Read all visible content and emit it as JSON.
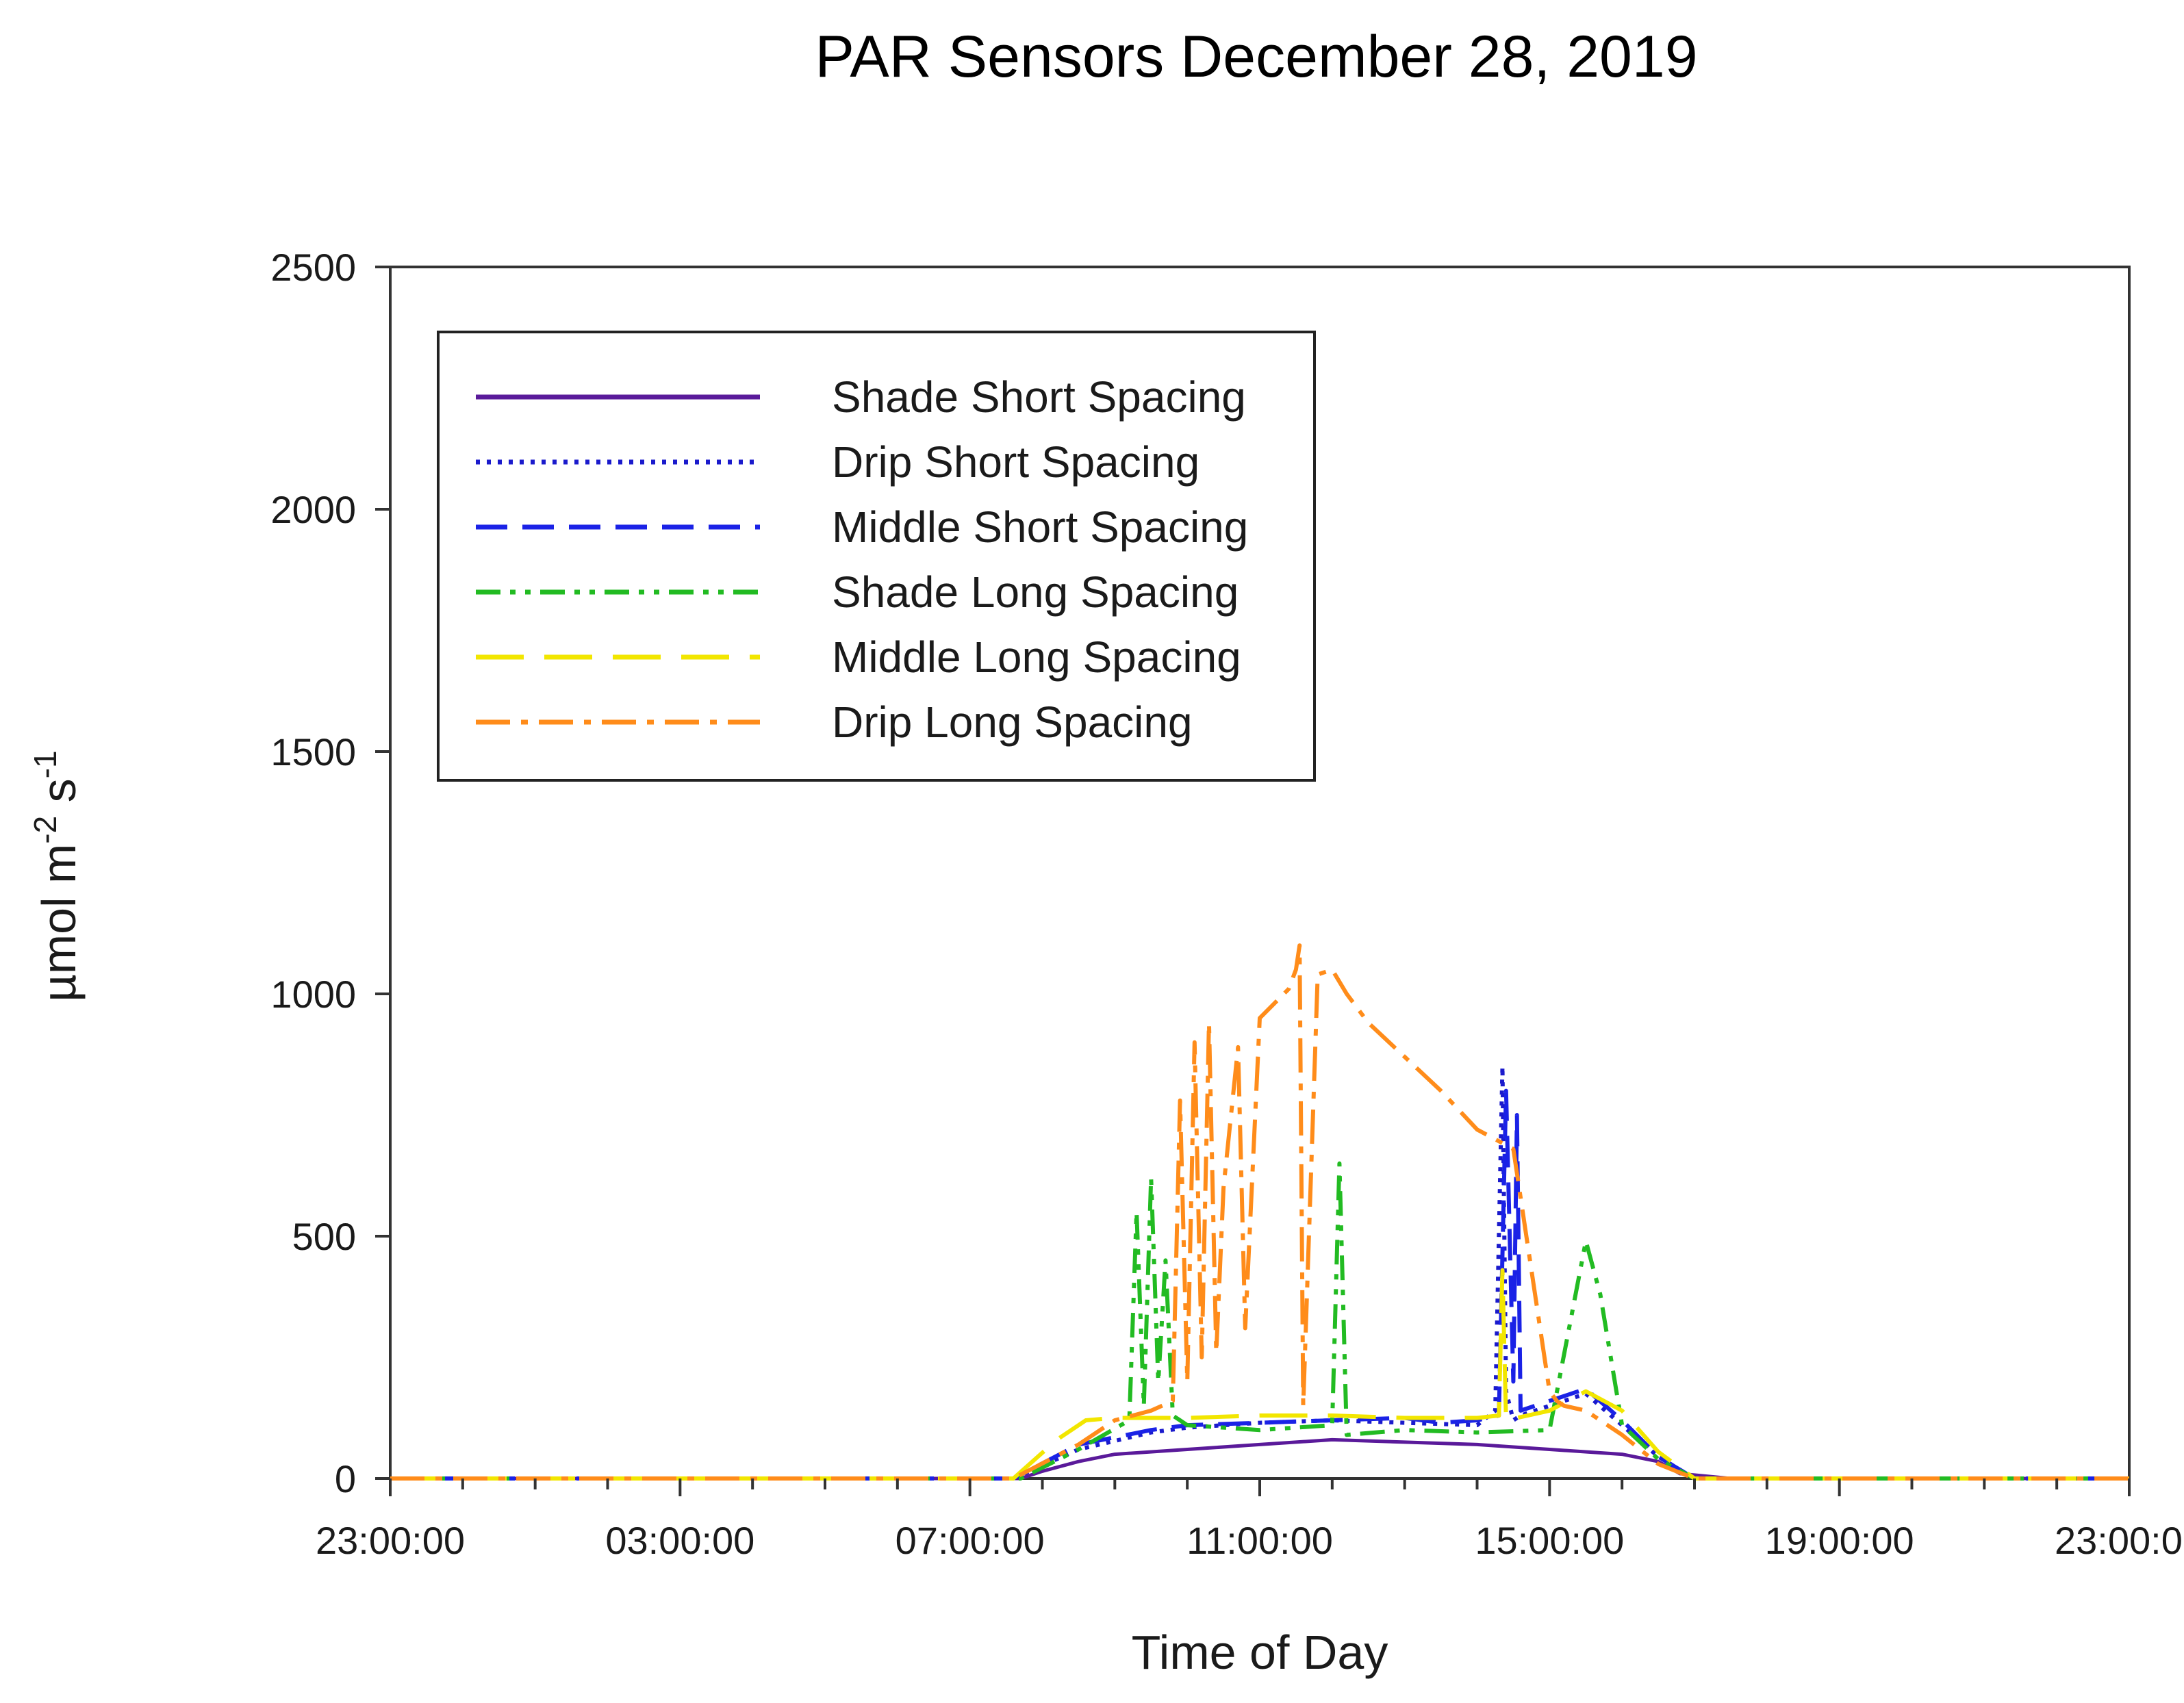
{
  "chart_data": {
    "type": "line",
    "title": "PAR Sensors December 28, 2019",
    "xlabel": "Time of Day",
    "ylabel": "µmol m-2 s-1",
    "ylabel_parts": {
      "base": "µmol m",
      "exp1": "-2",
      "mid": " s",
      "exp2": "-1"
    },
    "ylim": [
      0,
      2500
    ],
    "xlim": [
      0,
      24
    ],
    "yticks": [
      0,
      500,
      1000,
      1500,
      2000,
      2500
    ],
    "xticks": [
      0,
      4,
      8,
      12,
      16,
      20,
      24
    ],
    "xtick_labels": [
      "23:00:00",
      "03:00:00",
      "07:00:00",
      "11:00:00",
      "15:00:00",
      "19:00:00",
      "23:00:00"
    ],
    "minor_xticks_per_hour": 1,
    "legend_position": "top-left",
    "series": [
      {
        "name": "Shade Short Spacing",
        "color": "#5a1a9a",
        "style": "solid",
        "x": [
          0,
          8.7,
          9.0,
          9.5,
          10.0,
          11.0,
          12.0,
          13.0,
          14.0,
          15.0,
          16.0,
          17.0,
          17.5,
          17.8,
          18.5,
          24
        ],
        "y": [
          0,
          0,
          15,
          35,
          50,
          60,
          70,
          80,
          75,
          70,
          60,
          50,
          35,
          10,
          0,
          0
        ]
      },
      {
        "name": "Drip Short Spacing",
        "color": "#1a1acc",
        "style": "dotted",
        "x": [
          0,
          8.6,
          9.5,
          10.5,
          11.0,
          12.0,
          13.0,
          14.0,
          15.0,
          15.25,
          15.35,
          15.4,
          15.5,
          15.6,
          16.0,
          16.5,
          17.0,
          17.5,
          18.0,
          24
        ],
        "y": [
          0,
          0,
          60,
          95,
          105,
          115,
          120,
          115,
          110,
          140,
          850,
          180,
          120,
          130,
          150,
          175,
          110,
          45,
          0,
          0
        ]
      },
      {
        "name": "Middle Short Spacing",
        "color": "#1a22e6",
        "style": "dashed",
        "x": [
          0,
          8.6,
          9.5,
          10.5,
          11.0,
          12.0,
          13.0,
          14.0,
          14.5,
          15.0,
          15.3,
          15.4,
          15.5,
          15.55,
          15.6,
          16.0,
          16.5,
          17.0,
          17.5,
          18.0,
          24
        ],
        "y": [
          0,
          0,
          70,
          100,
          110,
          115,
          120,
          125,
          115,
          120,
          130,
          800,
          200,
          750,
          140,
          160,
          185,
          120,
          45,
          0,
          0
        ]
      },
      {
        "name": "Shade Long Spacing",
        "color": "#22bb22",
        "style": "dashdotdot",
        "x": [
          0,
          8.7,
          9.5,
          10.2,
          10.3,
          10.4,
          10.5,
          10.6,
          10.7,
          10.8,
          10.9,
          11.0,
          12.0,
          13.0,
          13.1,
          13.2,
          14.0,
          15.0,
          16.0,
          16.5,
          16.7,
          17.0,
          17.5,
          18.0,
          24
        ],
        "y": [
          0,
          0,
          60,
          120,
          550,
          150,
          620,
          200,
          450,
          130,
          120,
          110,
          100,
          110,
          650,
          90,
          100,
          95,
          100,
          490,
          380,
          110,
          40,
          0,
          0
        ]
      },
      {
        "name": "Middle Long Spacing",
        "color": "#f2e600",
        "style": "longdash",
        "x": [
          0,
          8.6,
          9.2,
          9.6,
          10.0,
          11.0,
          12.0,
          13.0,
          14.0,
          15.0,
          15.3,
          15.35,
          15.4,
          16.0,
          16.5,
          17.0,
          17.5,
          18.0,
          24
        ],
        "y": [
          0,
          0,
          80,
          120,
          125,
          125,
          130,
          130,
          125,
          125,
          130,
          430,
          120,
          140,
          180,
          140,
          55,
          0,
          0
        ]
      },
      {
        "name": "Drip Long Spacing",
        "color": "#ff8c1a",
        "style": "dashdot",
        "x": [
          0,
          8.6,
          9.5,
          10.0,
          10.5,
          10.8,
          10.9,
          11.0,
          11.1,
          11.2,
          11.3,
          11.4,
          11.5,
          11.7,
          11.8,
          12.0,
          12.4,
          12.5,
          12.55,
          12.6,
          12.8,
          13.0,
          13.2,
          13.5,
          14.0,
          14.5,
          15.0,
          15.5,
          16.0,
          16.1,
          16.2,
          16.5,
          17.0,
          17.5,
          18.0,
          24
        ],
        "y": [
          0,
          0,
          70,
          120,
          140,
          160,
          780,
          200,
          900,
          250,
          940,
          260,
          600,
          890,
          310,
          950,
          1010,
          1050,
          1100,
          150,
          1040,
          1050,
          1000,
          940,
          870,
          800,
          720,
          680,
          180,
          160,
          150,
          140,
          90,
          30,
          0,
          0
        ]
      }
    ]
  }
}
